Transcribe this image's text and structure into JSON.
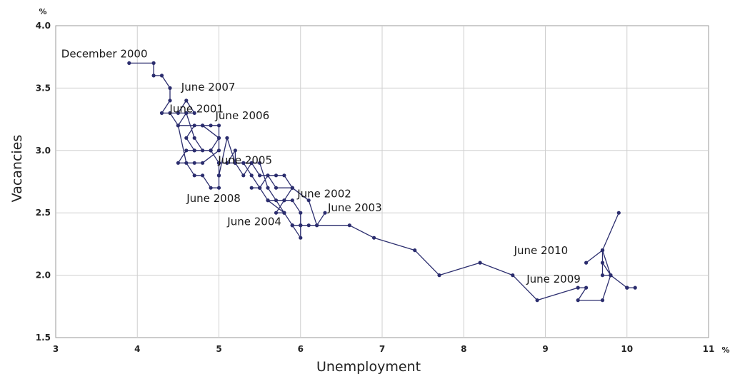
{
  "chart_data": {
    "type": "line",
    "xlabel": "Unemployment",
    "ylabel": "Vacancies",
    "x_unit": "%",
    "y_unit": "%",
    "xlim": [
      3,
      11
    ],
    "ylim": [
      1.5,
      4.0
    ],
    "x_ticks": [
      "3",
      "4",
      "5",
      "6",
      "7",
      "8",
      "9",
      "10",
      "11"
    ],
    "y_ticks": [
      "1.5",
      "2.0",
      "2.5",
      "3.0",
      "3.5",
      "4.0"
    ],
    "grid": true,
    "line_color": "#2b2d6e",
    "marker_color": "#2b2d6e",
    "series": [
      {
        "x": [
          3.9,
          4.2,
          4.2,
          4.3,
          4.4,
          4.4,
          4.3,
          4.5,
          4.6,
          4.7,
          4.6,
          4.4,
          4.5,
          4.8,
          4.9,
          5.0,
          5.0,
          4.9,
          4.7,
          4.6,
          4.7,
          4.8,
          5.0,
          5.0,
          4.8,
          4.7,
          4.5,
          4.6,
          4.7,
          4.9,
          5.0,
          5.0,
          5.1,
          5.2,
          5.3,
          5.4,
          5.5,
          5.6,
          5.7,
          5.8,
          5.9,
          6.1,
          6.2,
          6.3,
          6.2,
          6.1,
          6.0,
          6.0,
          5.9,
          5.8,
          5.7,
          5.8,
          5.9,
          6.0,
          6.0,
          5.9,
          5.8,
          5.6,
          5.5,
          5.4,
          5.5,
          5.6,
          5.8,
          5.9,
          5.9,
          5.7,
          5.6,
          5.5,
          5.4,
          5.3,
          5.2,
          5.2,
          5.1,
          5.0,
          5.0,
          5.0,
          4.9,
          4.8,
          4.7,
          4.6,
          4.5,
          4.6,
          4.7,
          4.8,
          4.9,
          5.0,
          5.0,
          5.0,
          5.1,
          5.2,
          5.3,
          5.4,
          5.5,
          5.6,
          5.7,
          5.8,
          5.9,
          6.0,
          6.6,
          6.9,
          7.4,
          7.7,
          8.2,
          8.6,
          8.9,
          9.4,
          9.5,
          9.4,
          9.7,
          9.8,
          9.7,
          9.9,
          9.7,
          9.5
        ],
        "y": [
          3.7,
          3.7,
          3.6,
          3.6,
          3.5,
          3.4,
          3.3,
          3.3,
          3.4,
          3.3,
          3.3,
          3.3,
          3.2,
          3.2,
          3.2,
          3.2,
          3.1,
          3.0,
          3.0,
          3.1,
          3.2,
          3.2,
          3.1,
          3.0,
          2.9,
          2.9,
          2.9,
          3.0,
          3.0,
          3.0,
          2.9,
          2.8,
          3.1,
          2.9,
          2.9,
          2.8,
          2.7,
          2.8,
          2.8,
          2.8,
          2.7,
          2.6,
          2.4,
          2.5,
          2.4,
          2.4,
          2.4,
          2.3,
          2.4,
          2.5,
          2.5,
          2.6,
          2.6,
          2.5,
          2.4,
          2.4,
          2.5,
          2.6,
          2.7,
          2.7,
          2.7,
          2.6,
          2.6,
          2.7,
          2.7,
          2.7,
          2.8,
          2.8,
          2.9,
          2.9,
          2.9,
          3.0,
          2.9,
          2.9,
          2.8,
          2.7,
          2.7,
          2.8,
          2.8,
          2.9,
          3.2,
          3.3,
          3.1,
          3.0,
          3.0,
          2.9,
          2.8,
          2.9,
          2.9,
          2.9,
          2.8,
          2.9,
          2.9,
          2.7,
          2.6,
          2.5,
          2.4,
          2.4,
          2.4,
          2.3,
          2.2,
          2.0,
          2.1,
          2.0,
          1.8,
          1.9,
          1.9,
          1.8,
          1.8,
          2.0,
          2.2,
          2.5,
          2.2,
          2.1
        ]
      },
      {
        "x": [
          9.7,
          9.7,
          9.8,
          10.0,
          10.1,
          10.0,
          9.8,
          9.7,
          9.7
        ],
        "y": [
          2.2,
          2.0,
          2.0,
          1.9,
          1.9,
          1.9,
          2.0,
          2.1,
          2.2
        ]
      }
    ],
    "annotations": [
      {
        "text": "December 2000",
        "x": 3.9,
        "y": 3.7
      },
      {
        "text": "June 2007",
        "x": 4.6,
        "y": 3.4
      },
      {
        "text": "June 2001",
        "x": 4.5,
        "y": 3.3
      },
      {
        "text": "June 2006",
        "x": 5.0,
        "y": 3.2
      },
      {
        "text": "June 2005",
        "x": 5.2,
        "y": 2.9
      },
      {
        "text": "June 2008",
        "x": 5.4,
        "y": 2.7
      },
      {
        "text": "June 2002",
        "x": 6.1,
        "y": 2.6
      },
      {
        "text": "June 2003",
        "x": 6.3,
        "y": 2.5
      },
      {
        "text": "June 2004",
        "x": 5.9,
        "y": 2.4
      },
      {
        "text": "June 2010",
        "x": 9.5,
        "y": 2.1
      },
      {
        "text": "June 2009",
        "x": 9.4,
        "y": 1.9
      }
    ]
  }
}
